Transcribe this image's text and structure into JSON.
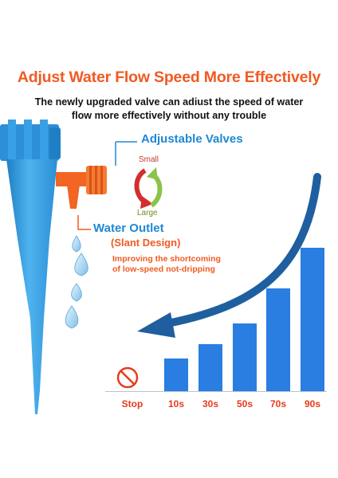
{
  "headline": "Adjust Water Flow Speed More Effectively",
  "subtitle": {
    "line1": "The newly upgraded valve can adiust the speed of water",
    "line2": "flow more effectively without any trouble"
  },
  "callouts": {
    "valves": "Adjustable Valves",
    "small": "Small",
    "large": "Large",
    "outlet": "Water Outlet",
    "slant": "(Slant Design)",
    "improve_line1": "Improving the shortcoming",
    "improve_line2": "of low-speed not-dripping"
  },
  "colors": {
    "accent": "#f05a22",
    "blue": "#1e88d4",
    "bar": "#2a7de1",
    "category": "#e83a1c"
  },
  "icons": [
    "stop-icon",
    "adjust-arrows-icon",
    "curved-arrow-icon",
    "water-drop-icon"
  ],
  "chart_data": {
    "type": "bar",
    "categories": [
      "Stop",
      "10s",
      "30s",
      "50s",
      "70s",
      "90s"
    ],
    "values": [
      0,
      1.6,
      2.3,
      3.3,
      5.0,
      7.0
    ],
    "ylim": [
      0,
      7.5
    ],
    "grid": false
  }
}
